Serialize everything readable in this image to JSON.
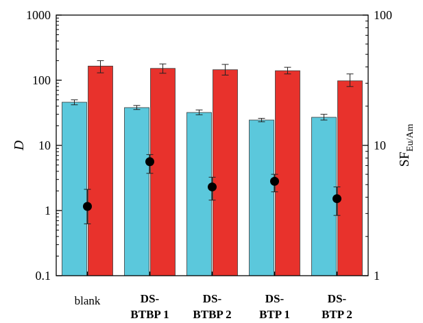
{
  "chart_data": {
    "type": "bar",
    "categories": [
      {
        "lines": [
          "blank"
        ],
        "bold": false
      },
      {
        "lines": [
          "DS-",
          "BTBP 1"
        ],
        "bold": true
      },
      {
        "lines": [
          "DS-",
          "BTBP 2"
        ],
        "bold": true
      },
      {
        "lines": [
          "DS-",
          "BTP 1"
        ],
        "bold": true
      },
      {
        "lines": [
          "DS-",
          "BTP 2"
        ],
        "bold": true
      }
    ],
    "series": [
      {
        "axis": "left",
        "kind": "bar",
        "color": "#5BC8DC",
        "values": [
          46,
          38,
          32,
          24.5,
          27
        ],
        "err_low": [
          42,
          35.5,
          29.5,
          23,
          24.5
        ],
        "err_high": [
          50,
          41,
          35,
          26,
          30
        ]
      },
      {
        "axis": "left",
        "kind": "bar",
        "color": "#E8322C",
        "values": [
          165,
          152,
          145,
          140,
          98
        ],
        "err_low": [
          130,
          128,
          120,
          125,
          80
        ],
        "err_high": [
          200,
          178,
          175,
          158,
          125
        ]
      },
      {
        "axis": "right",
        "kind": "scatter",
        "color": "#000000",
        "values": [
          3.4,
          7.5,
          4.8,
          5.3,
          3.9
        ],
        "err_low": [
          2.5,
          6.1,
          3.8,
          4.4,
          2.9
        ],
        "err_high": [
          4.6,
          8.5,
          5.7,
          6.0,
          4.8
        ]
      }
    ],
    "yaxis_left": {
      "label": "D",
      "scale": "log",
      "ylim": [
        0.1,
        1000
      ],
      "ticks": [
        0.1,
        1,
        10,
        100,
        1000
      ],
      "tick_labels": [
        "0.1",
        "1",
        "10",
        "100",
        "1000"
      ]
    },
    "yaxis_right": {
      "label_main": "SF",
      "label_sub": "Eu/Am",
      "scale": "log",
      "ylim": [
        1,
        100
      ],
      "ticks": [
        1,
        10,
        100
      ],
      "tick_labels": [
        "1",
        "10",
        "100"
      ]
    },
    "grid": false,
    "legend": "none"
  }
}
